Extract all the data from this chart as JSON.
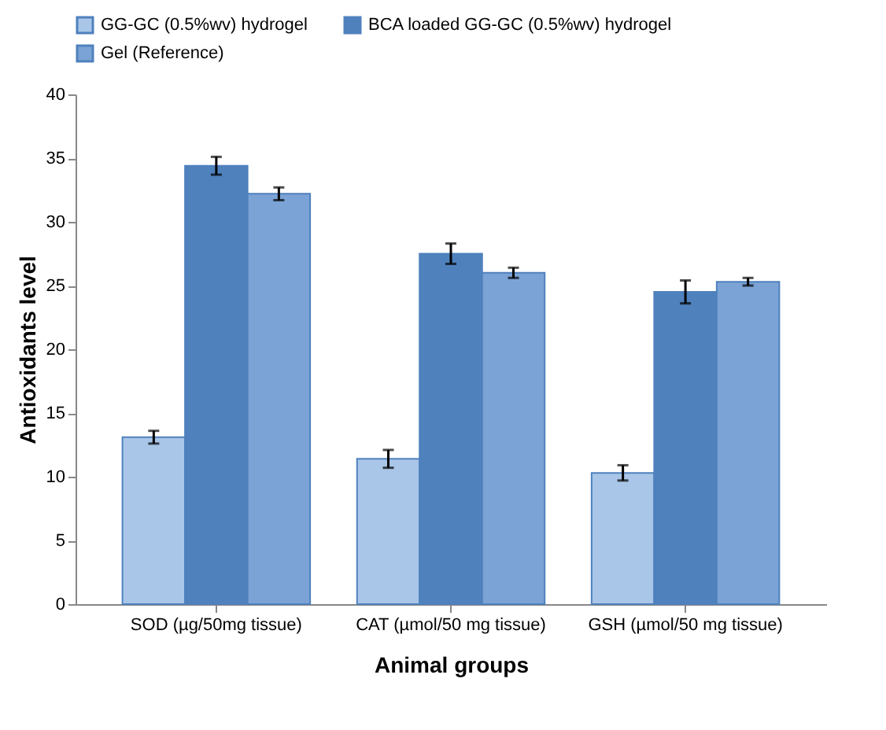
{
  "chart_data": {
    "type": "bar",
    "xlabel": "Animal groups",
    "ylabel": "Antioxidants level",
    "categories": [
      "SOD (µg/50mg tissue)",
      "CAT (µmol/50 mg tissue)",
      "GSH (µmol/50 mg tissue)"
    ],
    "series": [
      {
        "name": "GG-GC (0.5%wv) hydrogel",
        "color": "#a9c6e8",
        "values": [
          13.1,
          11.4,
          10.3
        ],
        "errors": [
          0.5,
          0.7,
          0.6
        ]
      },
      {
        "name": "BCA loaded GG-GC (0.5%wv) hydrogel",
        "color": "#4f81bd",
        "values": [
          34.4,
          27.5,
          24.5
        ],
        "errors": [
          0.7,
          0.8,
          0.9
        ]
      },
      {
        "name": "Gel (Reference)",
        "color": "#7ba3d6",
        "values": [
          32.2,
          26.0,
          25.3
        ],
        "errors": [
          0.5,
          0.4,
          0.3
        ]
      }
    ],
    "ylim": [
      0,
      40
    ],
    "yticks": [
      0,
      5,
      10,
      15,
      20,
      25,
      30,
      35,
      40
    ],
    "grid": false,
    "legend": "top"
  }
}
